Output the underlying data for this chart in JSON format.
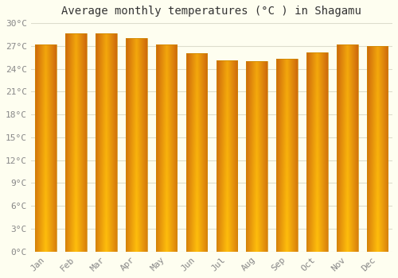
{
  "title": "Average monthly temperatures (°C ) in Shagamu",
  "months": [
    "Jan",
    "Feb",
    "Mar",
    "Apr",
    "May",
    "Jun",
    "Jul",
    "Aug",
    "Sep",
    "Oct",
    "Nov",
    "Dec"
  ],
  "values": [
    27.2,
    28.6,
    28.6,
    28.0,
    27.2,
    26.0,
    25.1,
    25.0,
    25.3,
    26.1,
    27.2,
    27.0
  ],
  "ylim": [
    0,
    30
  ],
  "yticks": [
    0,
    3,
    6,
    9,
    12,
    15,
    18,
    21,
    24,
    27,
    30
  ],
  "ytick_labels": [
    "0°C",
    "3°C",
    "6°C",
    "9°C",
    "12°C",
    "15°C",
    "18°C",
    "21°C",
    "24°C",
    "27°C",
    "30°C"
  ],
  "background_color": "#FEFEF0",
  "grid_color": "#DDDDCC",
  "title_fontsize": 10,
  "tick_fontsize": 8,
  "bar_color_center": "#FFD540",
  "bar_color_edge": "#F5A800",
  "bar_edge_color": "#CC8800",
  "bar_width": 0.7
}
